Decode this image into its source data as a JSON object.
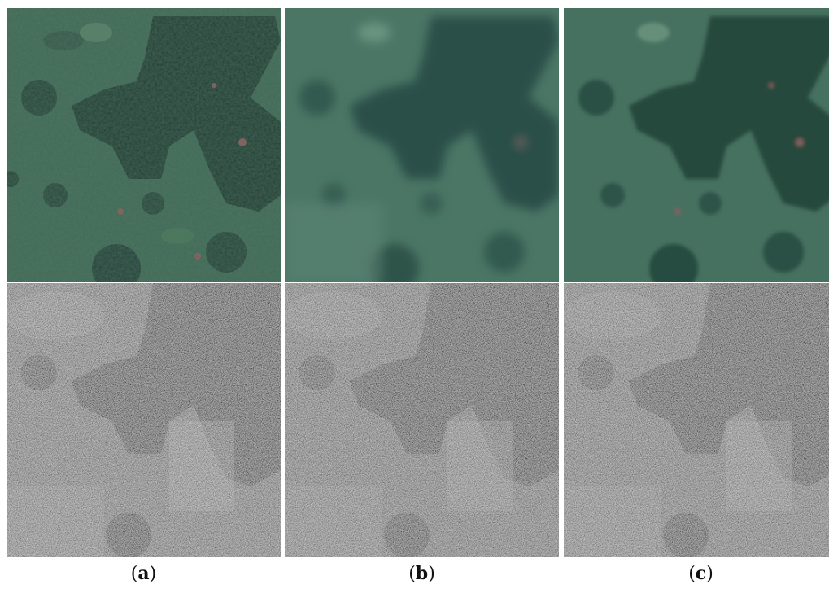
{
  "figure": {
    "panels": [
      {
        "id": "a",
        "caption_open": "(",
        "caption_letter": "a",
        "caption_close": ")",
        "style": "sharp"
      },
      {
        "id": "b",
        "caption_open": "(",
        "caption_letter": "b",
        "caption_close": ")",
        "style": "blurred"
      },
      {
        "id": "c",
        "caption_open": "(",
        "caption_letter": "c",
        "caption_close": ")",
        "style": "medium"
      }
    ],
    "rows": [
      "optical-rgb",
      "sar-grayscale"
    ]
  },
  "colors": {
    "optical_base": "#3f6a55",
    "optical_forest": "#1f3d33",
    "optical_reddish": "#8a5a5a",
    "sar_base": "#7a7a7a",
    "sar_dark": "#2a2a2a",
    "sar_light": "#bdbdbd"
  }
}
